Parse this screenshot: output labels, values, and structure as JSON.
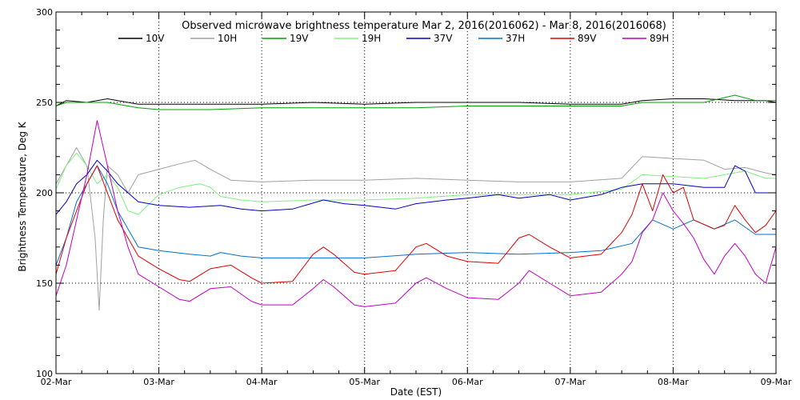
{
  "chart_data": {
    "type": "line",
    "title": "Observed microwave brightness temperature Mar  2, 2016(2016062) - Mar  8, 2016(2016068)",
    "xlabel": "Date (EST)",
    "ylabel": "Brightness Temperature, Deg K",
    "xlim": [
      0,
      7
    ],
    "ylim": [
      100,
      300
    ],
    "x_ticks": [
      {
        "value": 0,
        "label": "02-Mar"
      },
      {
        "value": 1,
        "label": "03-Mar"
      },
      {
        "value": 2,
        "label": "04-Mar"
      },
      {
        "value": 3,
        "label": "05-Mar"
      },
      {
        "value": 4,
        "label": "06-Mar"
      },
      {
        "value": 5,
        "label": "07-Mar"
      },
      {
        "value": 6,
        "label": "08-Mar"
      },
      {
        "value": 7,
        "label": "09-Mar"
      }
    ],
    "y_ticks": [
      {
        "value": 100,
        "label": "100"
      },
      {
        "value": 150,
        "label": "150"
      },
      {
        "value": 200,
        "label": "200"
      },
      {
        "value": 250,
        "label": "250"
      },
      {
        "value": 300,
        "label": "300"
      }
    ],
    "grid": "dotted",
    "legend_position": "top",
    "series": [
      {
        "name": "10V",
        "color": "#000000",
        "points": [
          [
            0,
            248
          ],
          [
            0.1,
            251
          ],
          [
            0.3,
            250
          ],
          [
            0.5,
            252
          ],
          [
            0.8,
            249
          ],
          [
            1.0,
            249
          ],
          [
            1.5,
            249
          ],
          [
            2.0,
            249
          ],
          [
            2.5,
            250
          ],
          [
            3.0,
            249
          ],
          [
            3.5,
            250
          ],
          [
            4.0,
            250
          ],
          [
            4.5,
            250
          ],
          [
            5.0,
            249
          ],
          [
            5.5,
            249
          ],
          [
            5.7,
            251
          ],
          [
            6.0,
            252
          ],
          [
            6.3,
            252
          ],
          [
            6.6,
            251
          ],
          [
            6.9,
            251
          ],
          [
            7.0,
            250
          ]
        ]
      },
      {
        "name": "10H",
        "color": "#a0a0a0",
        "points": [
          [
            0,
            205
          ],
          [
            0.1,
            215
          ],
          [
            0.2,
            225
          ],
          [
            0.3,
            215
          ],
          [
            0.38,
            175
          ],
          [
            0.42,
            135
          ],
          [
            0.46,
            185
          ],
          [
            0.5,
            215
          ],
          [
            0.6,
            210
          ],
          [
            0.7,
            200
          ],
          [
            0.8,
            210
          ],
          [
            1.0,
            213
          ],
          [
            1.2,
            216
          ],
          [
            1.35,
            218
          ],
          [
            1.5,
            213
          ],
          [
            1.7,
            207
          ],
          [
            2.0,
            206
          ],
          [
            2.5,
            207
          ],
          [
            3.0,
            207
          ],
          [
            3.5,
            208
          ],
          [
            4.0,
            207
          ],
          [
            4.5,
            206
          ],
          [
            5.0,
            206
          ],
          [
            5.5,
            208
          ],
          [
            5.7,
            220
          ],
          [
            6.0,
            219
          ],
          [
            6.3,
            218
          ],
          [
            6.5,
            213
          ],
          [
            6.7,
            214
          ],
          [
            6.9,
            211
          ],
          [
            7.0,
            210
          ]
        ]
      },
      {
        "name": "19V",
        "color": "#00a000",
        "points": [
          [
            0,
            248
          ],
          [
            0.1,
            250
          ],
          [
            0.3,
            250
          ],
          [
            0.5,
            250
          ],
          [
            0.8,
            247
          ],
          [
            1.0,
            246
          ],
          [
            1.5,
            246
          ],
          [
            2.0,
            247
          ],
          [
            2.5,
            247
          ],
          [
            3.0,
            247
          ],
          [
            3.5,
            247
          ],
          [
            4.0,
            248
          ],
          [
            4.5,
            248
          ],
          [
            5.0,
            248
          ],
          [
            5.5,
            248
          ],
          [
            5.7,
            250
          ],
          [
            6.0,
            250
          ],
          [
            6.3,
            250
          ],
          [
            6.6,
            254
          ],
          [
            6.8,
            251
          ],
          [
            7.0,
            251
          ]
        ]
      },
      {
        "name": "19H",
        "color": "#80f080",
        "points": [
          [
            0,
            202
          ],
          [
            0.1,
            215
          ],
          [
            0.2,
            222
          ],
          [
            0.3,
            215
          ],
          [
            0.4,
            205
          ],
          [
            0.5,
            210
          ],
          [
            0.6,
            203
          ],
          [
            0.7,
            190
          ],
          [
            0.8,
            188
          ],
          [
            1.0,
            199
          ],
          [
            1.2,
            203
          ],
          [
            1.4,
            205
          ],
          [
            1.5,
            203
          ],
          [
            1.6,
            198
          ],
          [
            1.8,
            196
          ],
          [
            2.0,
            195
          ],
          [
            2.5,
            196
          ],
          [
            3.0,
            196
          ],
          [
            3.5,
            197
          ],
          [
            4.0,
            199
          ],
          [
            4.5,
            199
          ],
          [
            5.0,
            199
          ],
          [
            5.5,
            202
          ],
          [
            5.7,
            210
          ],
          [
            6.0,
            209
          ],
          [
            6.3,
            208
          ],
          [
            6.5,
            210
          ],
          [
            6.7,
            212
          ],
          [
            6.9,
            208
          ],
          [
            7.0,
            208
          ]
        ]
      },
      {
        "name": "37V",
        "color": "#0000c0",
        "points": [
          [
            0,
            188
          ],
          [
            0.1,
            195
          ],
          [
            0.2,
            205
          ],
          [
            0.3,
            210
          ],
          [
            0.4,
            218
          ],
          [
            0.5,
            212
          ],
          [
            0.6,
            205
          ],
          [
            0.7,
            200
          ],
          [
            0.8,
            195
          ],
          [
            1.0,
            193
          ],
          [
            1.3,
            192
          ],
          [
            1.6,
            193
          ],
          [
            1.8,
            191
          ],
          [
            2.0,
            190
          ],
          [
            2.3,
            191
          ],
          [
            2.6,
            196
          ],
          [
            2.8,
            194
          ],
          [
            3.0,
            193
          ],
          [
            3.3,
            191
          ],
          [
            3.5,
            194
          ],
          [
            3.8,
            196
          ],
          [
            4.0,
            197
          ],
          [
            4.3,
            199
          ],
          [
            4.5,
            197
          ],
          [
            4.8,
            199
          ],
          [
            5.0,
            196
          ],
          [
            5.3,
            199
          ],
          [
            5.5,
            203
          ],
          [
            5.7,
            205
          ],
          [
            6.0,
            205
          ],
          [
            6.3,
            203
          ],
          [
            6.5,
            203
          ],
          [
            6.6,
            215
          ],
          [
            6.7,
            212
          ],
          [
            6.8,
            200
          ],
          [
            7.0,
            200
          ]
        ]
      },
      {
        "name": "37H",
        "color": "#0070d0",
        "points": [
          [
            0,
            160
          ],
          [
            0.1,
            175
          ],
          [
            0.2,
            195
          ],
          [
            0.3,
            205
          ],
          [
            0.4,
            215
          ],
          [
            0.5,
            205
          ],
          [
            0.6,
            190
          ],
          [
            0.7,
            180
          ],
          [
            0.8,
            170
          ],
          [
            1.0,
            168
          ],
          [
            1.3,
            166
          ],
          [
            1.5,
            165
          ],
          [
            1.6,
            167
          ],
          [
            1.8,
            165
          ],
          [
            2.0,
            164
          ],
          [
            2.5,
            164
          ],
          [
            3.0,
            164
          ],
          [
            3.5,
            166
          ],
          [
            4.0,
            167
          ],
          [
            4.5,
            166
          ],
          [
            5.0,
            167
          ],
          [
            5.3,
            168
          ],
          [
            5.6,
            172
          ],
          [
            5.8,
            185
          ],
          [
            6.0,
            180
          ],
          [
            6.2,
            185
          ],
          [
            6.4,
            180
          ],
          [
            6.6,
            185
          ],
          [
            6.8,
            177
          ],
          [
            7.0,
            177
          ]
        ]
      },
      {
        "name": "89V",
        "color": "#e00000",
        "points": [
          [
            0,
            155
          ],
          [
            0.1,
            175
          ],
          [
            0.2,
            190
          ],
          [
            0.3,
            205
          ],
          [
            0.4,
            215
          ],
          [
            0.5,
            200
          ],
          [
            0.6,
            185
          ],
          [
            0.7,
            175
          ],
          [
            0.8,
            165
          ],
          [
            1.0,
            158
          ],
          [
            1.2,
            152
          ],
          [
            1.3,
            151
          ],
          [
            1.5,
            158
          ],
          [
            1.7,
            160
          ],
          [
            1.9,
            153
          ],
          [
            2.0,
            150
          ],
          [
            2.3,
            151
          ],
          [
            2.5,
            166
          ],
          [
            2.6,
            170
          ],
          [
            2.7,
            166
          ],
          [
            2.9,
            156
          ],
          [
            3.0,
            155
          ],
          [
            3.3,
            157
          ],
          [
            3.5,
            170
          ],
          [
            3.6,
            172
          ],
          [
            3.8,
            165
          ],
          [
            4.0,
            162
          ],
          [
            4.3,
            161
          ],
          [
            4.5,
            175
          ],
          [
            4.6,
            177
          ],
          [
            4.8,
            170
          ],
          [
            5.0,
            164
          ],
          [
            5.3,
            166
          ],
          [
            5.5,
            178
          ],
          [
            5.6,
            188
          ],
          [
            5.7,
            205
          ],
          [
            5.8,
            190
          ],
          [
            5.9,
            210
          ],
          [
            6.0,
            200
          ],
          [
            6.1,
            203
          ],
          [
            6.2,
            185
          ],
          [
            6.4,
            180
          ],
          [
            6.5,
            182
          ],
          [
            6.6,
            193
          ],
          [
            6.7,
            185
          ],
          [
            6.8,
            178
          ],
          [
            6.9,
            182
          ],
          [
            7.0,
            190
          ]
        ]
      },
      {
        "name": "89H",
        "color": "#c000c0",
        "points": [
          [
            0,
            143
          ],
          [
            0.1,
            160
          ],
          [
            0.2,
            185
          ],
          [
            0.3,
            210
          ],
          [
            0.4,
            240
          ],
          [
            0.5,
            215
          ],
          [
            0.6,
            190
          ],
          [
            0.7,
            170
          ],
          [
            0.8,
            155
          ],
          [
            1.0,
            148
          ],
          [
            1.2,
            141
          ],
          [
            1.3,
            140
          ],
          [
            1.5,
            147
          ],
          [
            1.7,
            148
          ],
          [
            1.9,
            140
          ],
          [
            2.0,
            138
          ],
          [
            2.3,
            138
          ],
          [
            2.5,
            147
          ],
          [
            2.6,
            152
          ],
          [
            2.7,
            148
          ],
          [
            2.9,
            138
          ],
          [
            3.0,
            137
          ],
          [
            3.3,
            139
          ],
          [
            3.5,
            150
          ],
          [
            3.6,
            153
          ],
          [
            3.8,
            147
          ],
          [
            4.0,
            142
          ],
          [
            4.3,
            141
          ],
          [
            4.5,
            150
          ],
          [
            4.6,
            157
          ],
          [
            4.8,
            150
          ],
          [
            5.0,
            143
          ],
          [
            5.3,
            145
          ],
          [
            5.5,
            155
          ],
          [
            5.6,
            162
          ],
          [
            5.7,
            178
          ],
          [
            5.8,
            185
          ],
          [
            5.9,
            200
          ],
          [
            6.0,
            190
          ],
          [
            6.1,
            183
          ],
          [
            6.2,
            175
          ],
          [
            6.3,
            163
          ],
          [
            6.4,
            155
          ],
          [
            6.5,
            165
          ],
          [
            6.6,
            172
          ],
          [
            6.7,
            165
          ],
          [
            6.8,
            155
          ],
          [
            6.9,
            150
          ],
          [
            7.0,
            170
          ]
        ]
      }
    ]
  }
}
